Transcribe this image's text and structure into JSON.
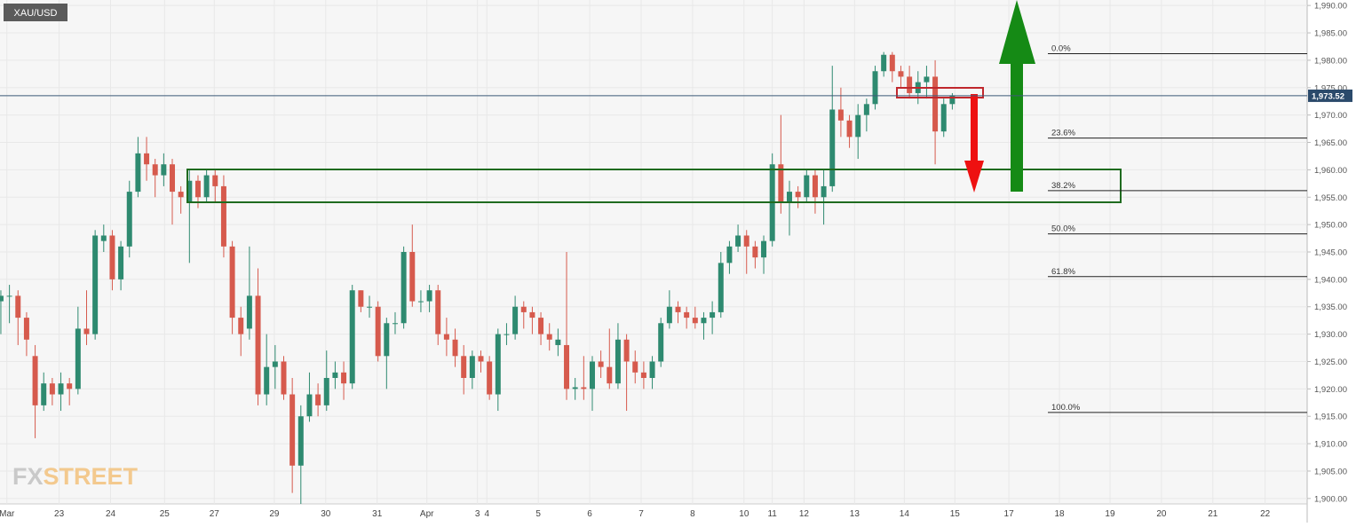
{
  "chart_data": {
    "type": "candlestick",
    "symbol": "XAU/USD",
    "watermark_fx": "FX",
    "watermark_street": "STREET",
    "up_color": "#2e8a70",
    "down_color": "#d65a4d",
    "open": [
      1936,
      1937,
      1937,
      1933,
      1926,
      1917,
      1921,
      1919,
      1921,
      1920,
      1931,
      1930,
      1947,
      1948,
      1940,
      1946,
      1956,
      1963,
      1961,
      1959,
      1961,
      1956,
      1954,
      1958,
      1955,
      1959,
      1957,
      1946,
      1933,
      1931,
      1937,
      1919,
      1924,
      1925,
      1919,
      1906,
      1915,
      1919,
      1917,
      1922,
      1923,
      1921,
      1938,
      1935,
      1935,
      1926,
      1932,
      1932,
      1945,
      1936,
      1936,
      1938,
      1930,
      1929,
      1926,
      1922,
      1926,
      1925,
      1919,
      1930,
      1930,
      1935,
      1934,
      1933,
      1930,
      1928,
      1928,
      1920,
      1920.3,
      1920,
      1925,
      1924,
      1921,
      1929,
      1925,
      1923,
      1922,
      1925,
      1932,
      1935,
      1934,
      1933,
      1932,
      1933,
      1934,
      1943,
      1946,
      1948,
      1946,
      1944,
      1947,
      1961,
      1954,
      1956,
      1955,
      1959,
      1955,
      1957,
      1971,
      1969,
      1966,
      1970,
      1972,
      1978,
      1981,
      1978,
      1977,
      1974,
      1976,
      1977,
      1967,
      1972
    ],
    "high": [
      1938,
      1939,
      1938,
      1934,
      1928,
      1923,
      1922,
      1923,
      1922,
      1935,
      1938,
      1949,
      1950,
      1949,
      1947,
      1958,
      1966,
      1966,
      1962,
      1963,
      1962,
      1957,
      1960,
      1959,
      1960,
      1960,
      1959,
      1947,
      1935,
      1946,
      1942,
      1930,
      1928,
      1926,
      1922,
      1917,
      1923,
      1921,
      1927,
      1925,
      1925,
      1939,
      1938,
      1937,
      1936,
      1933,
      1934,
      1946,
      1950,
      1938,
      1939,
      1939,
      1933,
      1931,
      1928,
      1927,
      1927,
      1926,
      1931,
      1932,
      1937,
      1936,
      1935,
      1934,
      1932,
      1931,
      1945,
      1922,
      1926,
      1926,
      1927,
      1931,
      1932,
      1930,
      1927,
      1925,
      1926,
      1933,
      1938,
      1936,
      1935,
      1935,
      1934,
      1936,
      1945,
      1947,
      1950,
      1949,
      1947,
      1948,
      1963,
      1970,
      1958,
      1957,
      1960,
      1960,
      1960,
      1979,
      1975,
      1970,
      1972,
      1973,
      1979,
      1981.5,
      1981.5,
      1979,
      1979,
      1978,
      1979,
      1980,
      1973,
      1974
    ],
    "low": [
      1930,
      1932,
      1928,
      1926,
      1911,
      1916,
      1917,
      1916,
      1917,
      1919,
      1928,
      1929,
      1945,
      1938,
      1938,
      1944,
      1955,
      1958,
      1955,
      1957,
      1950,
      1952,
      1943,
      1953,
      1954,
      1954,
      1944,
      1930,
      1926,
      1929,
      1917,
      1917,
      1920,
      1918,
      1901,
      1899,
      1914,
      1915,
      1916,
      1920,
      1918,
      1920,
      1934,
      1933,
      1925,
      1920,
      1930,
      1931,
      1935,
      1934,
      1934,
      1928,
      1926,
      1924,
      1919,
      1920,
      1923,
      1918,
      1916,
      1928,
      1929,
      1931,
      1930,
      1928,
      1927,
      1926,
      1918,
      1918,
      1918,
      1916,
      1922,
      1920,
      1920,
      1916,
      1921,
      1920,
      1920,
      1924,
      1931,
      1932,
      1931,
      1931,
      1929,
      1930,
      1933,
      1941,
      1945,
      1941,
      1942,
      1941,
      1946,
      1952,
      1948,
      1953,
      1954,
      1952,
      1950,
      1956,
      1966,
      1964,
      1962,
      1967,
      1971,
      1977,
      1976,
      1975,
      1973,
      1972,
      1973,
      1961,
      1966,
      1971
    ],
    "close": [
      1937,
      1937,
      1933,
      1929,
      1917,
      1921,
      1919,
      1921,
      1920,
      1931,
      1930,
      1948,
      1948,
      1940,
      1946,
      1956,
      1963,
      1961,
      1959,
      1961,
      1956,
      1955,
      1958,
      1955,
      1959,
      1957,
      1946,
      1933,
      1930,
      1937,
      1919,
      1924,
      1925,
      1919,
      1906,
      1915,
      1919,
      1917,
      1922,
      1923,
      1921,
      1938,
      1935,
      1935,
      1926,
      1932,
      1932,
      1945,
      1936,
      1936,
      1938,
      1930,
      1929,
      1926,
      1922,
      1926,
      1925,
      1919,
      1930,
      1930,
      1935,
      1934,
      1933,
      1930,
      1929,
      1929,
      1920,
      1920.3,
      1920,
      1925,
      1924,
      1921,
      1929,
      1925,
      1923,
      1922,
      1925,
      1932,
      1935,
      1934,
      1933,
      1932,
      1933,
      1934,
      1943,
      1946,
      1948,
      1946,
      1944,
      1947,
      1961,
      1954,
      1956,
      1955,
      1959,
      1955,
      1957,
      1971,
      1969,
      1966,
      1970,
      1972,
      1978,
      1981,
      1978,
      1977,
      1974,
      1976,
      1977,
      1967,
      1972,
      1973.52
    ],
    "xlim": [
      -0.1,
      152.4
    ],
    "xticks": [
      {
        "value": 0.7,
        "label": "Mar"
      },
      {
        "value": 6.8,
        "label": "23"
      },
      {
        "value": 12.8,
        "label": "24"
      },
      {
        "value": 19.1,
        "label": "25"
      },
      {
        "value": 24.9,
        "label": "27"
      },
      {
        "value": 31.9,
        "label": "29"
      },
      {
        "value": 37.9,
        "label": "30"
      },
      {
        "value": 43.9,
        "label": "31"
      },
      {
        "value": 49.7,
        "label": "Apr"
      },
      {
        "value": 55.6,
        "label": "3"
      },
      {
        "value": 56.7,
        "label": "4"
      },
      {
        "value": 62.7,
        "label": "5"
      },
      {
        "value": 68.7,
        "label": "6"
      },
      {
        "value": 74.7,
        "label": "7"
      },
      {
        "value": 80.7,
        "label": "8"
      },
      {
        "value": 86.7,
        "label": "10"
      },
      {
        "value": 90,
        "label": "11"
      },
      {
        "value": 93.7,
        "label": "12"
      },
      {
        "value": 99.6,
        "label": "13"
      },
      {
        "value": 105.4,
        "label": "14"
      },
      {
        "value": 111.3,
        "label": "15"
      },
      {
        "value": 117.6,
        "label": "17"
      },
      {
        "value": 123.5,
        "label": "18"
      },
      {
        "value": 129.4,
        "label": "19"
      },
      {
        "value": 135.4,
        "label": "20"
      },
      {
        "value": 141.4,
        "label": "21"
      },
      {
        "value": 147.5,
        "label": "22"
      }
    ],
    "ylim": [
      1899,
      1991
    ],
    "yticks": [
      {
        "value": 1900,
        "label": "1,900.00"
      },
      {
        "value": 1905,
        "label": "1,905.00"
      },
      {
        "value": 1910,
        "label": "1,910.00"
      },
      {
        "value": 1915,
        "label": "1,915.00"
      },
      {
        "value": 1920,
        "label": "1,920.00"
      },
      {
        "value": 1925,
        "label": "1,925.00"
      },
      {
        "value": 1930,
        "label": "1,930.00"
      },
      {
        "value": 1935,
        "label": "1,935.00"
      },
      {
        "value": 1940,
        "label": "1,940.00"
      },
      {
        "value": 1945,
        "label": "1,945.00"
      },
      {
        "value": 1950,
        "label": "1,950.00"
      },
      {
        "value": 1955,
        "label": "1,955.00"
      },
      {
        "value": 1960,
        "label": "1,960.00"
      },
      {
        "value": 1965,
        "label": "1,965.00"
      },
      {
        "value": 1970,
        "label": "1,970.00"
      },
      {
        "value": 1975,
        "label": "1,975.00"
      },
      {
        "value": 1980,
        "label": "1,980.00"
      },
      {
        "value": 1985,
        "label": "1,985.00"
      },
      {
        "value": 1990,
        "label": "1,990.00"
      }
    ],
    "grid": true,
    "last_price": {
      "value": 1973.52,
      "label": "1,973.52"
    },
    "fib_levels": [
      {
        "value": 1981.2,
        "label": "0.0%"
      },
      {
        "value": 1965.8,
        "label": "23.6%"
      },
      {
        "value": 1956.2,
        "label": "38.2%"
      },
      {
        "value": 1948.3,
        "label": "50.0%"
      },
      {
        "value": 1940.5,
        "label": "61.8%"
      },
      {
        "value": 1915.7,
        "label": "100.0%"
      }
    ]
  }
}
